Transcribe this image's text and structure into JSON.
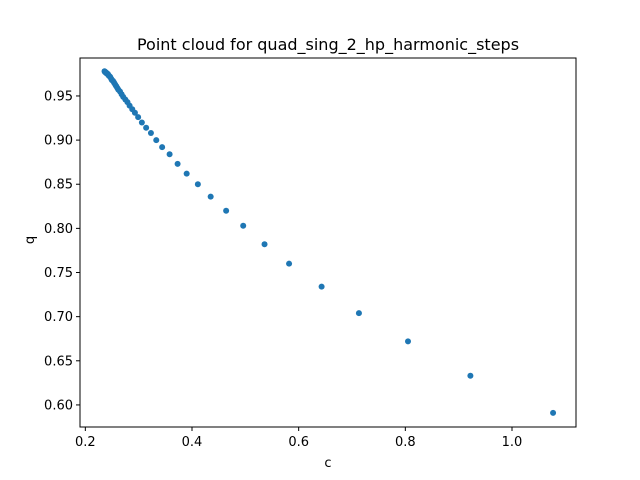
{
  "chart_data": {
    "type": "scatter",
    "title": "Point cloud for quad_sing_2_hp_harmonic_steps",
    "xlabel": "c",
    "ylabel": "q",
    "xlim": [
      0.19,
      1.12
    ],
    "ylim": [
      0.575,
      0.993
    ],
    "xticks": [
      0.2,
      0.4,
      0.6,
      0.8,
      1.0
    ],
    "xtick_labels": [
      "0.2",
      "0.4",
      "0.6",
      "0.8",
      "1.0"
    ],
    "yticks": [
      0.6,
      0.65,
      0.7,
      0.75,
      0.8,
      0.85,
      0.9,
      0.95
    ],
    "ytick_labels": [
      "0.60",
      "0.65",
      "0.70",
      "0.75",
      "0.80",
      "0.85",
      "0.90",
      "0.95"
    ],
    "color": "#1f77b4",
    "series": [
      {
        "name": "points",
        "x": [
          1.077,
          0.922,
          0.805,
          0.713,
          0.643,
          0.582,
          0.536,
          0.496,
          0.464,
          0.435,
          0.411,
          0.39,
          0.373,
          0.358,
          0.344,
          0.333,
          0.323,
          0.314,
          0.306,
          0.299,
          0.293,
          0.288,
          0.283,
          0.279,
          0.275,
          0.271,
          0.268,
          0.265,
          0.262,
          0.26,
          0.258,
          0.256,
          0.254,
          0.252,
          0.25,
          0.249,
          0.247,
          0.246,
          0.244,
          0.243,
          0.242,
          0.241,
          0.24,
          0.239,
          0.238,
          0.237,
          0.236
        ],
        "y": [
          0.591,
          0.633,
          0.672,
          0.704,
          0.734,
          0.76,
          0.782,
          0.803,
          0.82,
          0.836,
          0.85,
          0.862,
          0.873,
          0.884,
          0.892,
          0.9,
          0.908,
          0.914,
          0.92,
          0.926,
          0.931,
          0.935,
          0.939,
          0.943,
          0.946,
          0.949,
          0.952,
          0.955,
          0.957,
          0.959,
          0.961,
          0.963,
          0.965,
          0.967,
          0.968,
          0.969,
          0.971,
          0.972,
          0.973,
          0.974,
          0.975,
          0.975,
          0.976,
          0.976,
          0.977,
          0.977,
          0.978
        ]
      }
    ]
  }
}
